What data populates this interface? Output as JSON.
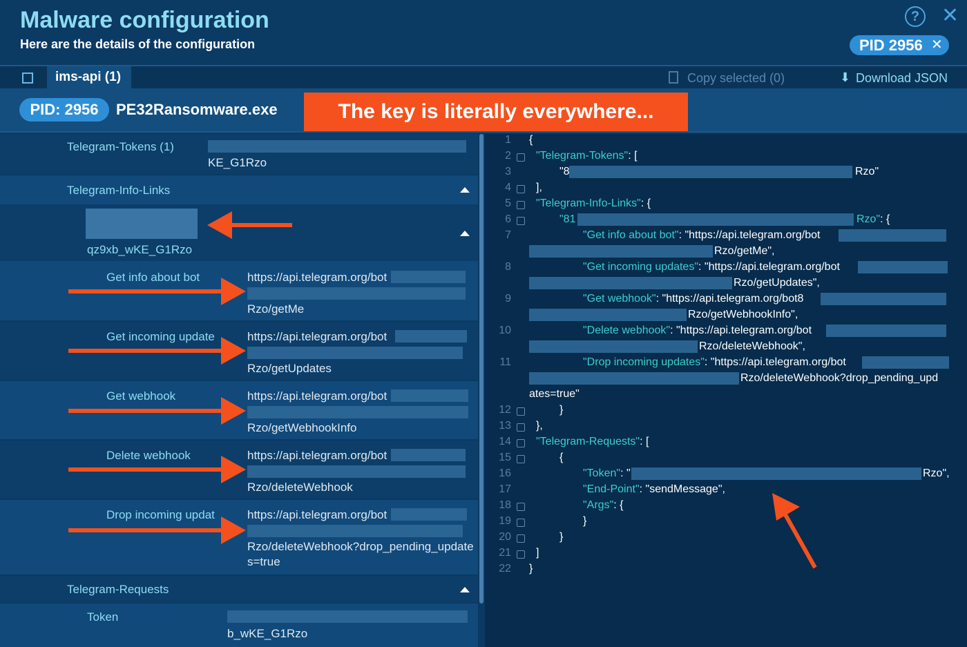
{
  "header": {
    "title": "Malware configuration",
    "subtitle": "Here are the details of the configuration",
    "pid_badge": "PID 2956"
  },
  "tabbar": {
    "tab_label": "ims-api (1)",
    "copy_label": "Copy selected (0)",
    "download_label": "Download JSON"
  },
  "process": {
    "pid_label": "PID: 2956",
    "name": "PE32Ransomware.exe"
  },
  "annotation": "The key is literally everywhere...",
  "left": {
    "tokens_key": "Telegram-Tokens (1)",
    "tokens_val_tail": "KE_G1Rzo",
    "info_links_key": "Telegram-Info-Links",
    "bot_id_tail": "qz9xb_wKE_G1Rzo",
    "items": [
      {
        "key": "Get info about bot",
        "url_head": "https://api.telegram.org/bot",
        "url_tail": "Rzo/getMe"
      },
      {
        "key": "Get incoming update",
        "url_head": "https://api.telegram.org/bot",
        "url_tail": "Rzo/getUpdates"
      },
      {
        "key": "Get webhook",
        "url_head": "https://api.telegram.org/bot",
        "url_tail": "Rzo/getWebhookInfo"
      },
      {
        "key": "Delete webhook",
        "url_head": "https://api.telegram.org/bot",
        "url_tail": "Rzo/deleteWebhook"
      },
      {
        "key": "Drop incoming updat",
        "url_head": "https://api.telegram.org/bot",
        "url_tail": "Rzo/deleteWebhook?drop_pending_update",
        "url_tail2": "s=true"
      }
    ],
    "requests_key": "Telegram-Requests",
    "token_key": "Token",
    "token_tail": "b_wKE_G1Rzo"
  },
  "code": {
    "line_numbers": [
      "1",
      "2",
      "3",
      "4",
      "5",
      "6",
      "7",
      "8",
      "9",
      "10",
      "11",
      "12",
      "13",
      "14",
      "15",
      "16",
      "17",
      "18",
      "19",
      "20",
      "21",
      "22"
    ],
    "l1": "{",
    "l2_key": "\"Telegram-Tokens\"",
    "l2_rest": ": [",
    "l3_head": "\"8",
    "l3_tail": "Rzo\"",
    "l4": "],",
    "l5_key": "\"Telegram-Info-Links\"",
    "l5_rest": ": {",
    "l6_key_head": "\"81",
    "l6_key_tail": "Rzo\"",
    "l6_rest": ": {",
    "l7_key": "\"Get info about bot\"",
    "l7_rest": ": \"https://api.telegram.org/bot",
    "l7b": "Rzo/getMe\",",
    "l8_key": "\"Get incoming updates\"",
    "l8_rest": ": \"https://api.telegram.org/bot",
    "l8b": "Rzo/getUpdates\",",
    "l9_key": "\"Get webhook\"",
    "l9_rest": ": \"https://api.telegram.org/bot8",
    "l9b": "Rzo/getWebhookInfo\",",
    "l10_key": "\"Delete webhook\"",
    "l10_rest": ": \"https://api.telegram.org/bot",
    "l10b": "Rzo/deleteWebhook\",",
    "l11_key": "\"Drop incoming updates\"",
    "l11_rest": ": \"https://api.telegram.org/bot",
    "l11b": "Rzo/deleteWebhook?drop_pending_upd",
    "l11c": "ates=true\"",
    "l12": "}",
    "l13": "},",
    "l14_key": "\"Telegram-Requests\"",
    "l14_rest": ": [",
    "l15": "{",
    "l16_key": "\"Token\"",
    "l16_rest": ": \"",
    "l16_tail": "Rzo\",",
    "l17_key": "\"End-Point\"",
    "l17_rest": ": \"sendMessage\",",
    "l18_key": "\"Args\"",
    "l18_rest": ": {",
    "l19": "}",
    "l20": "}",
    "l21": "]",
    "l22": "}"
  },
  "colors": {
    "accent": "#8fdcf2",
    "annotation": "#f4511e",
    "badge": "#2e8fd6"
  }
}
